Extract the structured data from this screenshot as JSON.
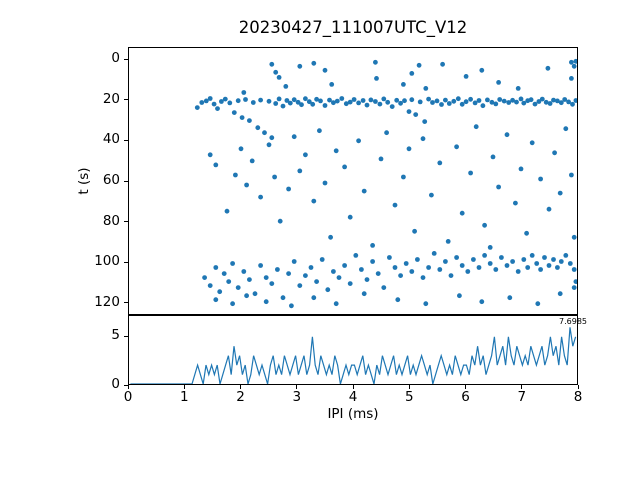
{
  "figure": {
    "background": "#ffffff",
    "accent": "#1f77b4"
  },
  "chart_data": [
    {
      "type": "scatter",
      "title": "20230427_111007UTC_V12",
      "ylabel": "t (s)",
      "xlim": [
        0,
        8
      ],
      "ylim": [
        -6.1,
        126.1
      ],
      "y_inverted": true,
      "yticks": [
        0,
        20,
        40,
        60,
        80,
        100,
        120
      ],
      "marker_color": "#1f77b4",
      "points": [
        [
          1.22,
          23.5
        ],
        [
          1.3,
          21.0
        ],
        [
          1.38,
          20.2
        ],
        [
          1.45,
          19.0
        ],
        [
          1.52,
          21.8
        ],
        [
          1.58,
          24.0
        ],
        [
          1.65,
          20.5
        ],
        [
          1.72,
          19.3
        ],
        [
          1.8,
          21.2
        ],
        [
          1.88,
          26.0
        ],
        [
          1.95,
          20.1
        ],
        [
          2.02,
          28.5
        ],
        [
          2.08,
          19.5
        ],
        [
          2.15,
          30.0
        ],
        [
          2.22,
          21.0
        ],
        [
          2.3,
          33.5
        ],
        [
          2.35,
          19.8
        ],
        [
          2.42,
          36.0
        ],
        [
          2.5,
          20.4
        ],
        [
          2.55,
          38.5
        ],
        [
          2.62,
          21.5
        ],
        [
          2.68,
          19.2
        ],
        [
          2.75,
          22.8
        ],
        [
          2.82,
          20.0
        ],
        [
          2.88,
          21.3
        ],
        [
          2.95,
          19.6
        ],
        [
          3.02,
          20.9
        ],
        [
          3.08,
          22.1
        ],
        [
          3.15,
          19.1
        ],
        [
          3.22,
          20.6
        ],
        [
          3.28,
          21.9
        ],
        [
          3.35,
          19.4
        ],
        [
          3.42,
          20.2
        ],
        [
          3.5,
          22.5
        ],
        [
          3.58,
          19.8
        ],
        [
          3.65,
          21.1
        ],
        [
          3.72,
          20.3
        ],
        [
          3.8,
          19.0
        ],
        [
          3.88,
          21.6
        ],
        [
          3.95,
          20.8
        ],
        [
          4.02,
          19.5
        ],
        [
          4.1,
          21.2
        ],
        [
          4.18,
          20.0
        ],
        [
          4.25,
          22.3
        ],
        [
          4.32,
          19.7
        ],
        [
          4.4,
          20.5
        ],
        [
          4.48,
          21.8
        ],
        [
          4.55,
          19.2
        ],
        [
          4.62,
          20.9
        ],
        [
          4.7,
          23.0
        ],
        [
          4.78,
          19.9
        ],
        [
          4.85,
          21.4
        ],
        [
          4.92,
          20.1
        ],
        [
          5.0,
          25.5
        ],
        [
          5.05,
          19.6
        ],
        [
          5.12,
          27.0
        ],
        [
          5.2,
          20.7
        ],
        [
          5.28,
          30.5
        ],
        [
          5.35,
          19.3
        ],
        [
          5.42,
          21.0
        ],
        [
          5.5,
          20.2
        ],
        [
          5.58,
          22.0
        ],
        [
          5.65,
          19.8
        ],
        [
          5.72,
          21.5
        ],
        [
          5.8,
          20.4
        ],
        [
          5.88,
          19.1
        ],
        [
          5.95,
          21.9
        ],
        [
          6.02,
          20.6
        ],
        [
          6.1,
          19.4
        ],
        [
          6.18,
          21.2
        ],
        [
          6.25,
          20.0
        ],
        [
          6.32,
          22.6
        ],
        [
          6.4,
          19.7
        ],
        [
          6.48,
          20.9
        ],
        [
          6.55,
          21.7
        ],
        [
          6.62,
          19.5
        ],
        [
          6.7,
          20.3
        ],
        [
          6.78,
          21.0
        ],
        [
          6.85,
          19.9
        ],
        [
          6.92,
          20.8
        ],
        [
          7.0,
          19.2
        ],
        [
          7.05,
          21.3
        ],
        [
          7.12,
          20.1
        ],
        [
          7.18,
          19.6
        ],
        [
          7.25,
          21.8
        ],
        [
          7.32,
          20.5
        ],
        [
          7.38,
          19.3
        ],
        [
          7.45,
          20.9
        ],
        [
          7.52,
          21.5
        ],
        [
          7.58,
          19.8
        ],
        [
          7.65,
          20.2
        ],
        [
          7.72,
          21.1
        ],
        [
          7.78,
          19.5
        ],
        [
          7.85,
          20.7
        ],
        [
          7.92,
          21.9
        ],
        [
          7.98,
          20.0
        ],
        [
          1.35,
          108
        ],
        [
          1.45,
          112
        ],
        [
          1.55,
          103
        ],
        [
          1.62,
          115
        ],
        [
          1.7,
          106
        ],
        [
          1.78,
          110
        ],
        [
          1.85,
          101
        ],
        [
          1.95,
          113
        ],
        [
          2.05,
          105
        ],
        [
          2.15,
          109
        ],
        [
          2.25,
          116
        ],
        [
          2.35,
          102
        ],
        [
          2.45,
          108
        ],
        [
          2.55,
          111
        ],
        [
          2.65,
          104
        ],
        [
          2.75,
          118
        ],
        [
          2.85,
          106
        ],
        [
          2.95,
          100
        ],
        [
          3.05,
          112
        ],
        [
          3.15,
          107
        ],
        [
          3.25,
          103
        ],
        [
          3.35,
          110
        ],
        [
          3.45,
          99
        ],
        [
          3.55,
          114
        ],
        [
          3.65,
          105
        ],
        [
          3.75,
          108
        ],
        [
          3.85,
          102
        ],
        [
          3.95,
          111
        ],
        [
          4.05,
          97
        ],
        [
          4.15,
          104
        ],
        [
          4.25,
          109
        ],
        [
          4.35,
          100
        ],
        [
          4.45,
          106
        ],
        [
          4.55,
          113
        ],
        [
          4.65,
          98
        ],
        [
          4.75,
          103
        ],
        [
          4.85,
          107
        ],
        [
          4.95,
          101
        ],
        [
          5.05,
          105
        ],
        [
          5.15,
          99
        ],
        [
          5.25,
          108
        ],
        [
          5.35,
          103
        ],
        [
          5.45,
          96
        ],
        [
          5.55,
          104
        ],
        [
          5.65,
          100
        ],
        [
          5.75,
          107
        ],
        [
          5.85,
          98
        ],
        [
          5.95,
          102
        ],
        [
          6.05,
          105
        ],
        [
          6.15,
          99
        ],
        [
          6.25,
          103
        ],
        [
          6.35,
          97
        ],
        [
          6.45,
          101
        ],
        [
          6.55,
          104
        ],
        [
          6.65,
          98
        ],
        [
          6.75,
          102
        ],
        [
          6.85,
          100
        ],
        [
          6.95,
          105
        ],
        [
          7.05,
          99
        ],
        [
          7.12,
          103
        ],
        [
          7.2,
          97
        ],
        [
          7.28,
          101
        ],
        [
          7.35,
          104
        ],
        [
          7.42,
          98
        ],
        [
          7.5,
          102
        ],
        [
          7.58,
          99
        ],
        [
          7.65,
          103
        ],
        [
          7.72,
          100
        ],
        [
          7.8,
          97
        ],
        [
          7.88,
          101
        ],
        [
          7.95,
          104
        ],
        [
          7.98,
          110
        ],
        [
          1.55,
          119
        ],
        [
          1.85,
          121
        ],
        [
          2.1,
          117
        ],
        [
          2.45,
          120
        ],
        [
          2.9,
          122
        ],
        [
          3.3,
          118
        ],
        [
          3.7,
          121
        ],
        [
          4.2,
          116
        ],
        [
          4.8,
          119
        ],
        [
          5.3,
          121
        ],
        [
          5.9,
          117
        ],
        [
          6.3,
          120
        ],
        [
          6.8,
          118
        ],
        [
          7.3,
          121
        ],
        [
          7.7,
          116
        ],
        [
          7.95,
          113
        ],
        [
          1.45,
          47
        ],
        [
          1.55,
          52
        ],
        [
          1.75,
          75
        ],
        [
          1.9,
          57
        ],
        [
          2.0,
          44
        ],
        [
          2.1,
          62
        ],
        [
          2.2,
          50
        ],
        [
          2.35,
          68
        ],
        [
          2.5,
          42
        ],
        [
          2.6,
          58
        ],
        [
          2.7,
          80
        ],
        [
          2.85,
          64
        ],
        [
          2.95,
          38
        ],
        [
          3.05,
          55
        ],
        [
          3.15,
          47
        ],
        [
          3.3,
          70
        ],
        [
          3.4,
          35
        ],
        [
          3.5,
          61
        ],
        [
          3.6,
          88
        ],
        [
          3.7,
          45
        ],
        [
          3.85,
          53
        ],
        [
          3.95,
          78
        ],
        [
          4.1,
          40
        ],
        [
          4.2,
          65
        ],
        [
          4.35,
          92
        ],
        [
          4.5,
          49
        ],
        [
          4.6,
          36
        ],
        [
          4.75,
          72
        ],
        [
          4.9,
          58
        ],
        [
          5.0,
          44
        ],
        [
          5.1,
          85
        ],
        [
          5.25,
          39
        ],
        [
          5.4,
          67
        ],
        [
          5.55,
          51
        ],
        [
          5.7,
          90
        ],
        [
          5.85,
          43
        ],
        [
          5.95,
          76
        ],
        [
          6.1,
          56
        ],
        [
          6.2,
          33
        ],
        [
          6.35,
          82
        ],
        [
          6.5,
          48
        ],
        [
          6.6,
          63
        ],
        [
          6.75,
          37
        ],
        [
          6.9,
          71
        ],
        [
          7.0,
          54
        ],
        [
          7.1,
          86
        ],
        [
          7.2,
          41
        ],
        [
          7.35,
          59
        ],
        [
          7.5,
          74
        ],
        [
          7.6,
          46
        ],
        [
          7.7,
          66
        ],
        [
          7.8,
          34
        ],
        [
          7.9,
          57
        ],
        [
          7.95,
          88
        ],
        [
          6.45,
          93
        ],
        [
          2.55,
          2
        ],
        [
          2.62,
          6
        ],
        [
          2.68,
          8.5
        ],
        [
          2.8,
          13
        ],
        [
          3.05,
          3
        ],
        [
          3.3,
          1.5
        ],
        [
          3.5,
          5
        ],
        [
          4.4,
          1
        ],
        [
          4.42,
          9
        ],
        [
          5.05,
          6.5
        ],
        [
          5.18,
          2.5
        ],
        [
          5.6,
          2
        ],
        [
          6.02,
          8
        ],
        [
          6.3,
          5
        ],
        [
          7.48,
          4
        ],
        [
          7.9,
          1
        ],
        [
          7.95,
          3
        ],
        [
          7.98,
          0.5
        ],
        [
          3.62,
          12
        ],
        [
          5.3,
          14
        ],
        [
          6.6,
          11
        ],
        [
          2.05,
          16
        ],
        [
          7.9,
          9
        ],
        [
          6.95,
          14
        ],
        [
          4.9,
          12
        ]
      ]
    },
    {
      "type": "line",
      "xlabel": "IPI (ms)",
      "xlim": [
        0,
        8
      ],
      "ylim": [
        0,
        7.2
      ],
      "xticks": [
        0,
        1,
        2,
        3,
        4,
        5,
        6,
        7,
        8
      ],
      "yticks": [
        0,
        5
      ],
      "line_color": "#1f77b4",
      "annotation": {
        "text": "7.6985",
        "x": 7.6985,
        "y": 6.9
      },
      "x0": 0,
      "dx": 0.05,
      "y": [
        0,
        0,
        0,
        0,
        0,
        0,
        0,
        0,
        0,
        0,
        0,
        0,
        0,
        0,
        0,
        0,
        0,
        0,
        0,
        0,
        0,
        0,
        0,
        1,
        2,
        1,
        0,
        2,
        1,
        2,
        1,
        2,
        0,
        1,
        2,
        3,
        1,
        4,
        2,
        3,
        1,
        2,
        0,
        1,
        3,
        2,
        1,
        2,
        1,
        0,
        2,
        3,
        1,
        2,
        1,
        3,
        2,
        1,
        2,
        3,
        1,
        2,
        3,
        1,
        2,
        5,
        2,
        1,
        3,
        2,
        1,
        2,
        1,
        3,
        2,
        0,
        1,
        2,
        1,
        2,
        2,
        1,
        2,
        3,
        1,
        2,
        1,
        0,
        2,
        1,
        3,
        2,
        1,
        2,
        3,
        1,
        2,
        1,
        2,
        3,
        1,
        2,
        1,
        2,
        3,
        2,
        1,
        2,
        0,
        1,
        2,
        3,
        2,
        1,
        2,
        1,
        3,
        2,
        1,
        2,
        2,
        1,
        3,
        2,
        4,
        2,
        3,
        1,
        2,
        3,
        5,
        2,
        3,
        4,
        2,
        5,
        3,
        2,
        4,
        3,
        2,
        3,
        2,
        4,
        3,
        2,
        3,
        4,
        2,
        3,
        5,
        3,
        4,
        2,
        5,
        3,
        2,
        6,
        4,
        5
      ]
    }
  ]
}
